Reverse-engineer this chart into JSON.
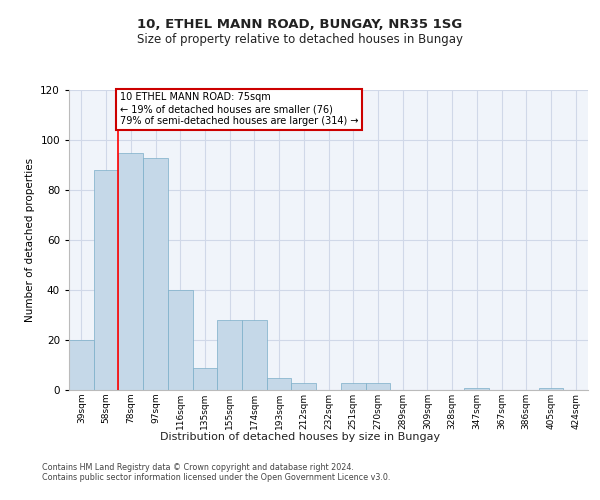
{
  "title_line1": "10, ETHEL MANN ROAD, BUNGAY, NR35 1SG",
  "title_line2": "Size of property relative to detached houses in Bungay",
  "xlabel": "Distribution of detached houses by size in Bungay",
  "ylabel": "Number of detached properties",
  "categories": [
    "39sqm",
    "58sqm",
    "78sqm",
    "97sqm",
    "116sqm",
    "135sqm",
    "155sqm",
    "174sqm",
    "193sqm",
    "212sqm",
    "232sqm",
    "251sqm",
    "270sqm",
    "289sqm",
    "309sqm",
    "328sqm",
    "347sqm",
    "367sqm",
    "386sqm",
    "405sqm",
    "424sqm"
  ],
  "values": [
    20,
    88,
    95,
    93,
    40,
    9,
    28,
    28,
    5,
    3,
    0,
    3,
    3,
    0,
    0,
    0,
    1,
    0,
    0,
    1,
    0
  ],
  "bar_color": "#c5d8e8",
  "bar_edge_color": "#7aaec8",
  "grid_color": "#d0d8e8",
  "background_color": "#f0f4fa",
  "annotation_text_line1": "10 ETHEL MANN ROAD: 75sqm",
  "annotation_text_line2": "← 19% of detached houses are smaller (76)",
  "annotation_text_line3": "79% of semi-detached houses are larger (314) →",
  "annotation_box_facecolor": "#ffffff",
  "annotation_box_edgecolor": "#cc0000",
  "red_line_x": 1.5,
  "ylim": [
    0,
    120
  ],
  "yticks": [
    0,
    20,
    40,
    60,
    80,
    100,
    120
  ],
  "footnote1": "Contains HM Land Registry data © Crown copyright and database right 2024.",
  "footnote2": "Contains public sector information licensed under the Open Government Licence v3.0."
}
